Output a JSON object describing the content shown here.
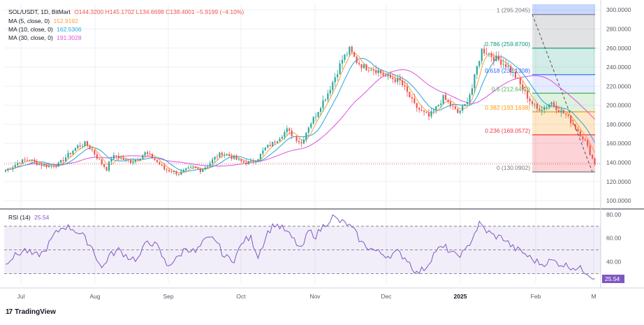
{
  "header": {
    "symbol": "SOL/USDT, 1D, BitMart",
    "open": "O144.3200",
    "high": "H145.1702",
    "low": "L134.6698",
    "close": "C138.4001",
    "change": "−5.9199 (−4.10%)"
  },
  "indicators": [
    {
      "label": "MA (5, close, 0)",
      "value": "152.9192",
      "color": "#f7a03b"
    },
    {
      "label": "MA (10, close, 0)",
      "value": "162.5306",
      "color": "#26a5de"
    },
    {
      "label": "MA (30, close, 0)",
      "value": "191.3028",
      "color": "#e050e0"
    }
  ],
  "rsi_label": "RSI (14)",
  "rsi_value": "25.54",
  "brand": "TradingView",
  "colors": {
    "up": "#26a69a",
    "down": "#ef5350",
    "rsi": "#7e57c2",
    "grid": "#eeeff2",
    "axis_text": "#555a64"
  },
  "chart_data": {
    "type": "candlestick",
    "price_axis": {
      "ticks": [
        "300.0000",
        "280.0000",
        "260.0000",
        "240.0000",
        "220.0000",
        "200.0000",
        "180.0000",
        "160.0000",
        "140.0000",
        "120.0000",
        "100.0000"
      ],
      "range": [
        92,
        306
      ]
    },
    "rsi_axis": {
      "ticks": [
        "80.00",
        "60.00",
        "40.00"
      ],
      "bands": [
        30,
        50,
        70
      ],
      "range": [
        22,
        84
      ]
    },
    "x_labels": [
      "Jul",
      "Aug",
      "Sep",
      "Oct",
      "Nov",
      "Dec",
      "2025",
      "Feb",
      "M"
    ],
    "last_price": 138.4,
    "close_anchors": [
      [
        0,
        132
      ],
      [
        3,
        136
      ],
      [
        6,
        141
      ],
      [
        10,
        143
      ],
      [
        14,
        138
      ],
      [
        18,
        136
      ],
      [
        22,
        138
      ],
      [
        26,
        148
      ],
      [
        30,
        157
      ],
      [
        33,
        160
      ],
      [
        36,
        153
      ],
      [
        39,
        142
      ],
      [
        42,
        133
      ],
      [
        44,
        145
      ],
      [
        46,
        147
      ],
      [
        49,
        143
      ],
      [
        52,
        141
      ],
      [
        55,
        144
      ],
      [
        58,
        150
      ],
      [
        61,
        145
      ],
      [
        64,
        138
      ],
      [
        66,
        133
      ],
      [
        69,
        131
      ],
      [
        72,
        128
      ],
      [
        75,
        132
      ],
      [
        78,
        135
      ],
      [
        81,
        132
      ],
      [
        84,
        137
      ],
      [
        87,
        145
      ],
      [
        90,
        150
      ],
      [
        93,
        147
      ],
      [
        96,
        143
      ],
      [
        99,
        140
      ],
      [
        102,
        140
      ],
      [
        105,
        145
      ],
      [
        108,
        155
      ],
      [
        111,
        160
      ],
      [
        114,
        167
      ],
      [
        117,
        174
      ],
      [
        120,
        167
      ],
      [
        123,
        160
      ],
      [
        126,
        178
      ],
      [
        129,
        190
      ],
      [
        131,
        200
      ],
      [
        134,
        213
      ],
      [
        137,
        230
      ],
      [
        140,
        248
      ],
      [
        143,
        258
      ],
      [
        146,
        246
      ],
      [
        149,
        240
      ],
      [
        152,
        239
      ],
      [
        155,
        236
      ],
      [
        158,
        230
      ],
      [
        161,
        228
      ],
      [
        164,
        225
      ],
      [
        167,
        213
      ],
      [
        170,
        200
      ],
      [
        173,
        193
      ],
      [
        176,
        188
      ],
      [
        179,
        197
      ],
      [
        182,
        208
      ],
      [
        185,
        200
      ],
      [
        188,
        192
      ],
      [
        191,
        200
      ],
      [
        194,
        218
      ],
      [
        196,
        240
      ],
      [
        198,
        258
      ],
      [
        200,
        256
      ],
      [
        203,
        250
      ],
      [
        206,
        246
      ],
      [
        209,
        240
      ],
      [
        212,
        230
      ],
      [
        215,
        217
      ],
      [
        218,
        205
      ],
      [
        221,
        196
      ],
      [
        224,
        198
      ],
      [
        227,
        203
      ],
      [
        230,
        195
      ],
      [
        233,
        190
      ],
      [
        236,
        180
      ],
      [
        239,
        170
      ],
      [
        241,
        162
      ],
      [
        243,
        150
      ],
      [
        245,
        138.4
      ]
    ],
    "rsi_anchors": [
      [
        0,
        40
      ],
      [
        4,
        45
      ],
      [
        8,
        50
      ],
      [
        12,
        45
      ],
      [
        16,
        48
      ],
      [
        20,
        62
      ],
      [
        24,
        70
      ],
      [
        28,
        68
      ],
      [
        32,
        62
      ],
      [
        36,
        52
      ],
      [
        40,
        34
      ],
      [
        43,
        45
      ],
      [
        47,
        50
      ],
      [
        51,
        44
      ],
      [
        55,
        42
      ],
      [
        59,
        58
      ],
      [
        63,
        53
      ],
      [
        67,
        37
      ],
      [
        71,
        42
      ],
      [
        75,
        52
      ],
      [
        79,
        48
      ],
      [
        83,
        58
      ],
      [
        87,
        60
      ],
      [
        91,
        44
      ],
      [
        95,
        42
      ],
      [
        99,
        58
      ],
      [
        102,
        60
      ],
      [
        105,
        45
      ],
      [
        109,
        65
      ],
      [
        112,
        72
      ],
      [
        116,
        67
      ],
      [
        120,
        58
      ],
      [
        123,
        50
      ],
      [
        126,
        66
      ],
      [
        129,
        62
      ],
      [
        132,
        70
      ],
      [
        136,
        78
      ],
      [
        139,
        74
      ],
      [
        142,
        72
      ],
      [
        145,
        66
      ],
      [
        148,
        56
      ],
      [
        151,
        52
      ],
      [
        155,
        48
      ],
      [
        159,
        45
      ],
      [
        163,
        48
      ],
      [
        167,
        42
      ],
      [
        171,
        30
      ],
      [
        175,
        36
      ],
      [
        179,
        50
      ],
      [
        183,
        52
      ],
      [
        187,
        45
      ],
      [
        191,
        48
      ],
      [
        194,
        60
      ],
      [
        197,
        72
      ],
      [
        200,
        66
      ],
      [
        203,
        62
      ],
      [
        207,
        60
      ],
      [
        211,
        52
      ],
      [
        215,
        48
      ],
      [
        219,
        42
      ],
      [
        223,
        38
      ],
      [
        227,
        41
      ],
      [
        231,
        38
      ],
      [
        235,
        36
      ],
      [
        239,
        34
      ],
      [
        242,
        31
      ],
      [
        245,
        25.54
      ]
    ],
    "fibonacci": {
      "levels": [
        {
          "ratio": "1",
          "price": 295.2045,
          "label": "1 (295.2045)",
          "color": "#787b86"
        },
        {
          "ratio": "0.786",
          "price": 259.87,
          "label": "0.786 (259.8700)",
          "color": "#089981"
        },
        {
          "ratio": "0.618",
          "price": 232.1308,
          "label": "0.618 (232.1308)",
          "color": "#2962ff"
        },
        {
          "ratio": "0.5",
          "price": 212.6473,
          "label": "0.5 (212.6473)",
          "color": "#4caf50"
        },
        {
          "ratio": "0.382",
          "price": 193.1638,
          "label": "0.382 (193.1638)",
          "color": "#ff9800"
        },
        {
          "ratio": "0.236",
          "price": 169.0572,
          "label": "0.236 (169.0572)",
          "color": "#f23645"
        },
        {
          "ratio": "0",
          "price": 130.0902,
          "label": "0 (130.0902)",
          "color": "#787b86"
        }
      ]
    }
  }
}
